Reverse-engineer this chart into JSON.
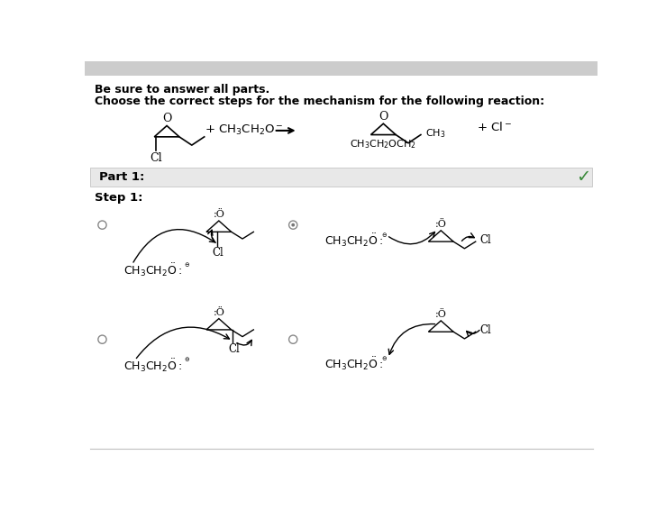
{
  "bg_color": "#ffffff",
  "text_color": "#000000",
  "bold_text1": "Be sure to answer all parts.",
  "bold_text2": "Choose the correct steps for the mechanism for the following reaction:",
  "part_label": "Part 1:",
  "step_label": "Step 1:",
  "check_color": "#3a8a3a",
  "header_bar_color": "#cccccc",
  "part_bar_color": "#e8e8e8",
  "part_bar_border": "#bbbbbb"
}
